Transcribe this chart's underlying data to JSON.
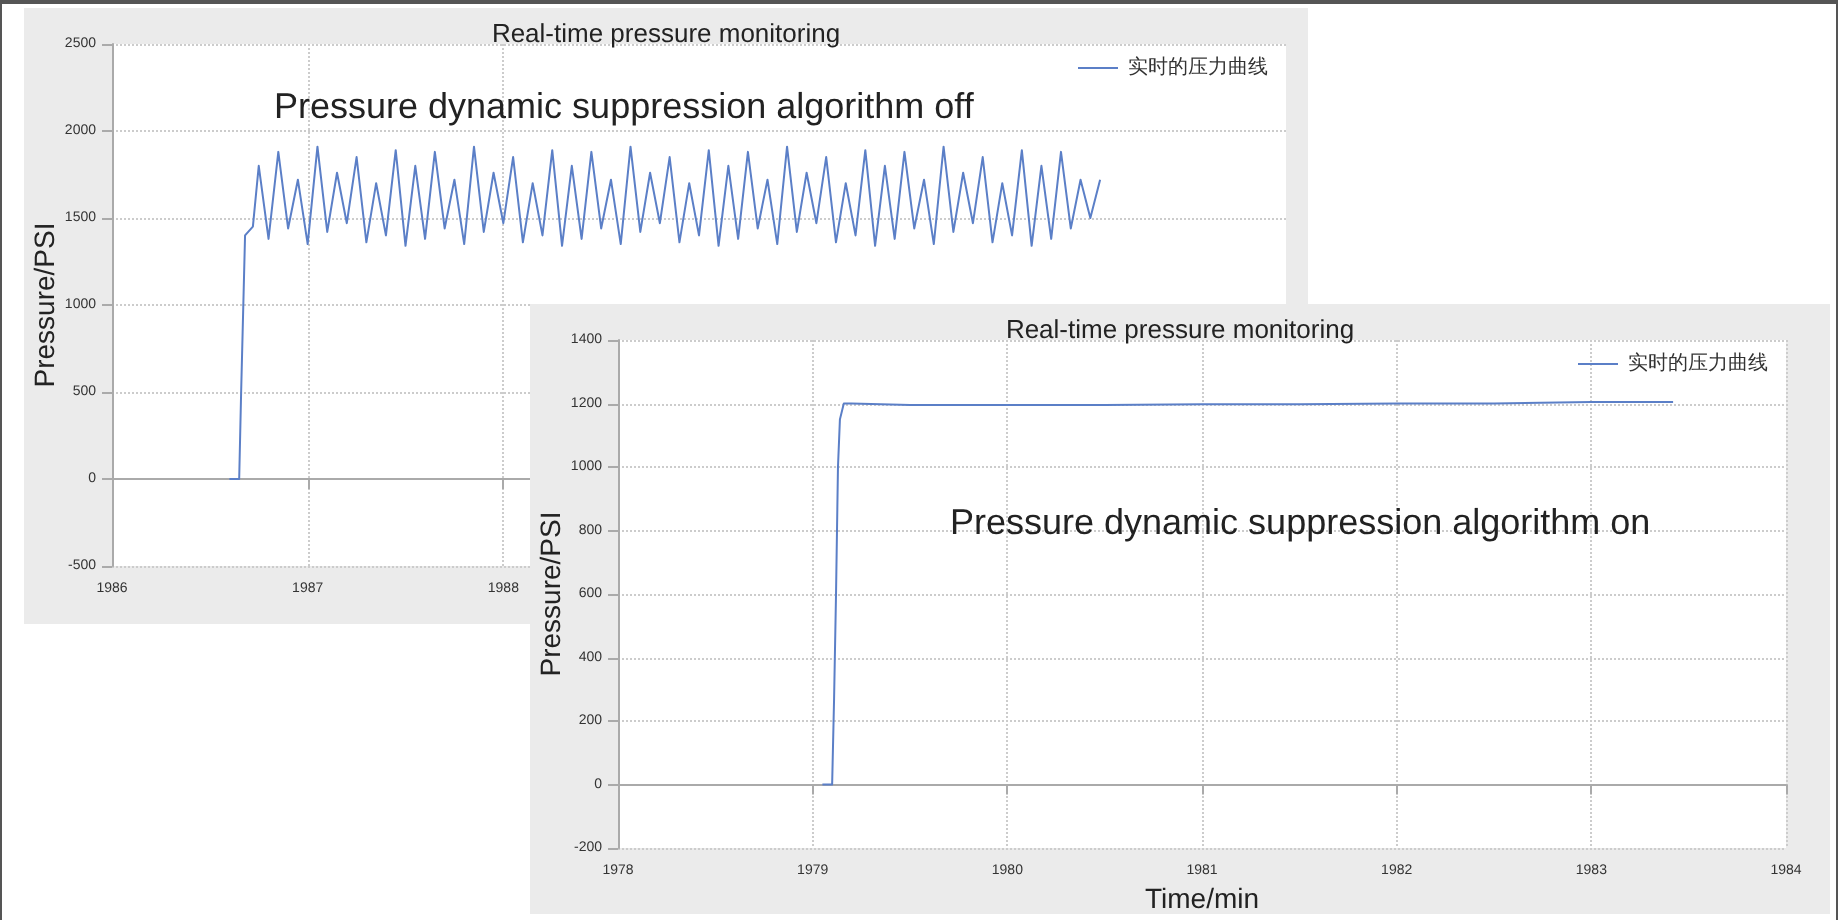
{
  "chart_data": [
    {
      "type": "line",
      "title": "Real-time pressure monitoring",
      "ylabel": "Pressure/PSI",
      "annotations": [
        "Pressure dynamic suppression algorithm off"
      ],
      "xlim": [
        1986,
        1992
      ],
      "xticks": [
        1986,
        1987,
        1988
      ],
      "ylim": [
        -500,
        2500
      ],
      "yticks": [
        -500,
        0,
        500,
        1000,
        1500,
        2000,
        2500
      ],
      "grid": true,
      "legend": "top right",
      "marker": "none",
      "line_style": "solid",
      "series": [
        {
          "name": "实时的压力曲线",
          "color": "#5b7fc7",
          "x": [
            1986.6,
            1986.65,
            1986.66,
            1986.68,
            1986.72,
            1986.75,
            1986.8,
            1986.85,
            1986.9,
            1986.95,
            1987,
            1987.05,
            1987.1,
            1987.15,
            1987.2,
            1987.25,
            1987.3,
            1987.35,
            1987.4,
            1987.45,
            1987.5,
            1987.55,
            1987.6,
            1987.65,
            1987.7,
            1987.75,
            1987.8,
            1987.85,
            1987.9,
            1987.95,
            1988,
            1988.05,
            1988.1,
            1988.15,
            1988.2,
            1988.25,
            1988.3,
            1988.35,
            1988.4,
            1988.45,
            1988.5,
            1988.55,
            1988.6,
            1988.65,
            1988.7,
            1988.75,
            1988.8,
            1988.85,
            1988.9,
            1988.95,
            1989,
            1989.05,
            1989.1,
            1989.15,
            1989.2,
            1989.25,
            1989.3,
            1989.35,
            1989.4,
            1989.45,
            1989.5,
            1989.55,
            1989.6,
            1989.65,
            1989.7,
            1989.75,
            1989.8,
            1989.85,
            1989.9,
            1989.95,
            1990,
            1990.05,
            1990.1,
            1990.15,
            1990.2,
            1990.25,
            1990.3,
            1990.35,
            1990.4,
            1990.45,
            1990.5,
            1990.55,
            1990.6,
            1990.65,
            1990.7,
            1990.75,
            1990.8,
            1990.85,
            1990.9,
            1990.95,
            1991,
            1991.05
          ],
          "values": [
            0,
            0,
            500,
            1400,
            1450,
            1800,
            1380,
            1880,
            1440,
            1720,
            1350,
            1910,
            1420,
            1760,
            1470,
            1850,
            1360,
            1700,
            1400,
            1890,
            1340,
            1800,
            1380,
            1880,
            1440,
            1720,
            1350,
            1910,
            1420,
            1760,
            1470,
            1850,
            1360,
            1700,
            1400,
            1890,
            1340,
            1800,
            1380,
            1880,
            1440,
            1720,
            1350,
            1910,
            1420,
            1760,
            1470,
            1850,
            1360,
            1700,
            1400,
            1890,
            1340,
            1800,
            1380,
            1880,
            1440,
            1720,
            1350,
            1910,
            1420,
            1760,
            1470,
            1850,
            1360,
            1700,
            1400,
            1890,
            1340,
            1800,
            1380,
            1880,
            1440,
            1720,
            1350,
            1910,
            1420,
            1760,
            1470,
            1850,
            1360,
            1700,
            1400,
            1890,
            1340,
            1800,
            1380,
            1880,
            1440,
            1720,
            1500,
            1720
          ]
        }
      ]
    },
    {
      "type": "line",
      "title": "Real-time pressure monitoring",
      "xlabel": "Time/min",
      "ylabel": "Pressure/PSI",
      "annotations": [
        "Pressure dynamic suppression algorithm on"
      ],
      "xlim": [
        1978,
        1984
      ],
      "xticks": [
        1978,
        1979,
        1980,
        1981,
        1982,
        1983,
        1984
      ],
      "ylim": [
        -200,
        1400
      ],
      "yticks": [
        -200,
        0,
        200,
        400,
        600,
        800,
        1000,
        1200,
        1400
      ],
      "grid": true,
      "legend": "top right",
      "marker": "none",
      "line_style": "solid",
      "series": [
        {
          "name": "实时的压力曲线",
          "color": "#5b7fc7",
          "x": [
            1979.05,
            1979.1,
            1979.11,
            1979.12,
            1979.13,
            1979.14,
            1979.16,
            1979.2,
            1979.5,
            1980,
            1980.5,
            1981,
            1981.5,
            1982,
            1982.5,
            1983,
            1983.42
          ],
          "values": [
            0,
            0,
            270,
            600,
            1000,
            1150,
            1200,
            1200,
            1195,
            1195,
            1195,
            1198,
            1198,
            1200,
            1200,
            1205,
            1205
          ]
        }
      ]
    }
  ]
}
